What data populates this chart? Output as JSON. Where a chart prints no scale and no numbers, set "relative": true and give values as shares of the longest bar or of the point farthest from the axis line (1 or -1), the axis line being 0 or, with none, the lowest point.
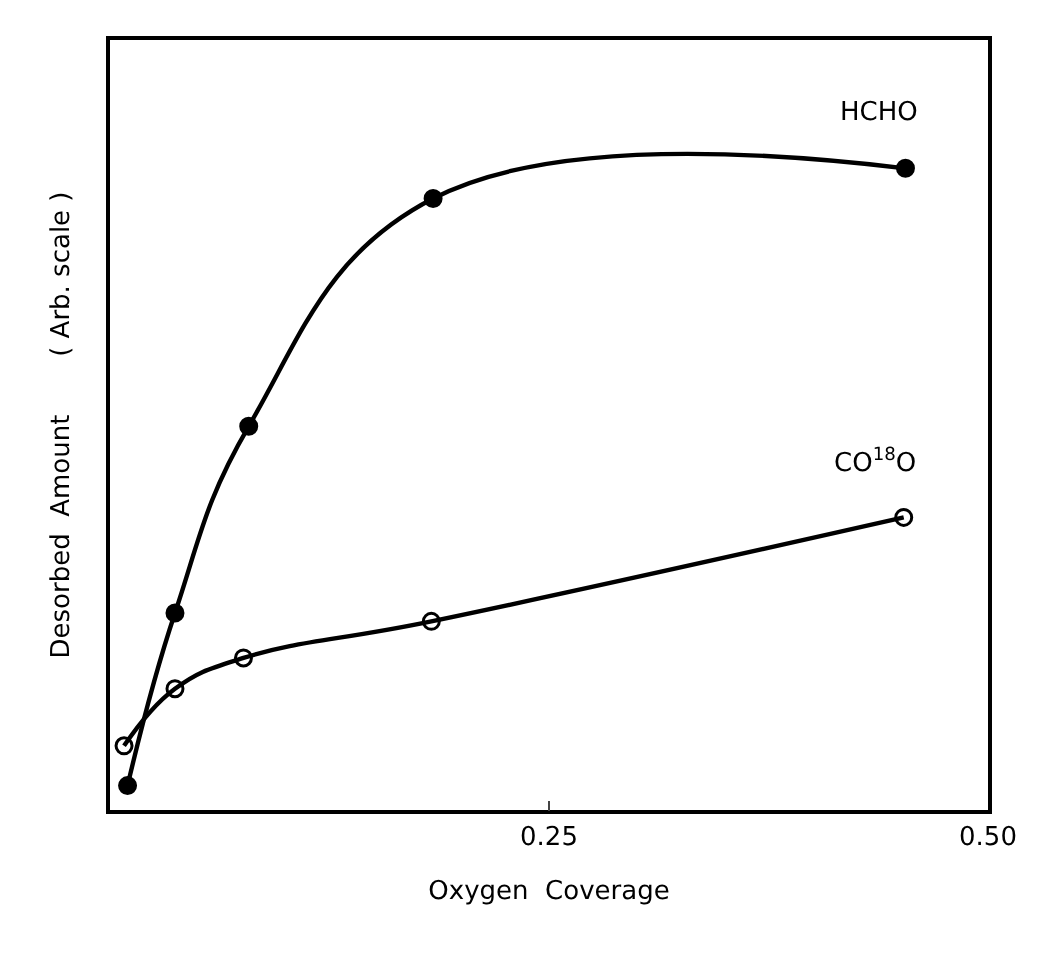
{
  "chart_data": {
    "type": "line",
    "xlabel": "Oxygen  Coverage",
    "ylabel": "Desorbed  Amount       ( Arb. scale )",
    "relative": true,
    "xlim": [
      0,
      0.5
    ],
    "xticks": [
      {
        "value": 0.25,
        "label": "0.25"
      },
      {
        "value": 0.5,
        "label": "0.50"
      }
    ],
    "legend": false,
    "line_style": "solid",
    "series": [
      {
        "name": "HCHO",
        "color": "#000000",
        "marker": "circle",
        "x": [
          0.01,
          0.037,
          0.079,
          0.184,
          0.453
        ],
        "values": [
          0.038,
          0.307,
          0.598,
          0.953,
          1.0
        ]
      },
      {
        "name": "CO$^{18}$O",
        "color": "#000000",
        "marker": "circle-open",
        "x": [
          0.008,
          0.037,
          0.076,
          0.183,
          0.452
        ],
        "values": [
          0.1,
          0.189,
          0.237,
          0.294,
          0.456
        ]
      }
    ]
  }
}
